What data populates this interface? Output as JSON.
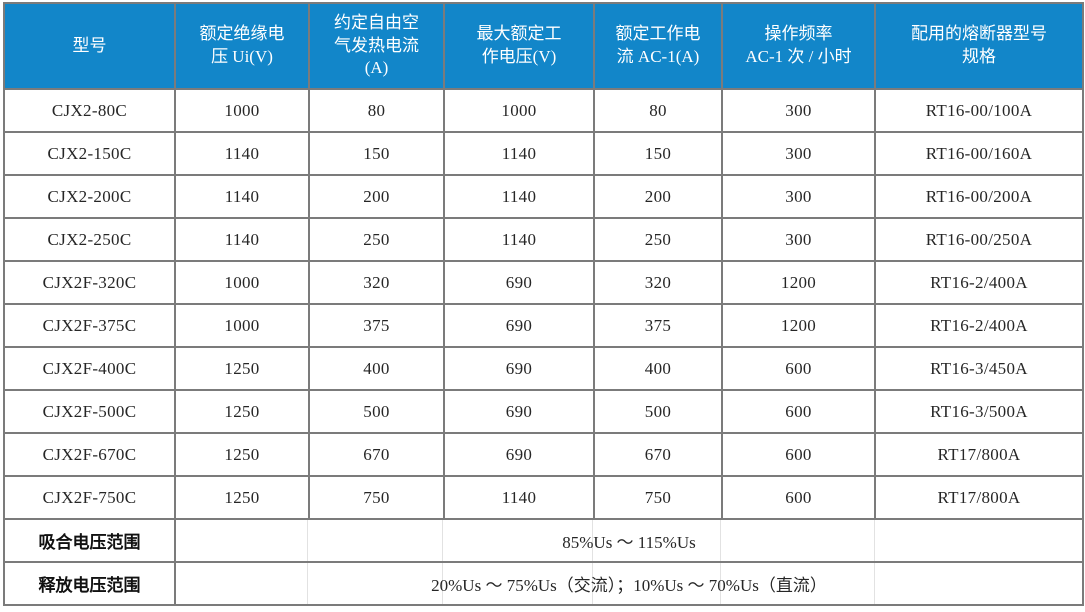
{
  "table": {
    "colors": {
      "header_bg": "#1286C9",
      "header_text": "#FFFFFF",
      "body_text": "#262626",
      "border": "#7B7B7B"
    },
    "columns": [
      "型号",
      "额定绝缘电\n压 Ui(V)",
      "约定自由空\n气发热电流\n(A)",
      "最大额定工\n作电压(V)",
      "额定工作电\n流 AC-1(A)",
      "操作频率\nAC-1 次 / 小时",
      "配用的熔断器型号\n规格"
    ],
    "rows": [
      [
        "CJX2-80C",
        "1000",
        "80",
        "1000",
        "80",
        "300",
        "RT16-00/100A"
      ],
      [
        "CJX2-150C",
        "1140",
        "150",
        "1140",
        "150",
        "300",
        "RT16-00/160A"
      ],
      [
        "CJX2-200C",
        "1140",
        "200",
        "1140",
        "200",
        "300",
        "RT16-00/200A"
      ],
      [
        "CJX2-250C",
        "1140",
        "250",
        "1140",
        "250",
        "300",
        "RT16-00/250A"
      ],
      [
        "CJX2F-320C",
        "1000",
        "320",
        "690",
        "320",
        "1200",
        "RT16-2/400A"
      ],
      [
        "CJX2F-375C",
        "1000",
        "375",
        "690",
        "375",
        "1200",
        "RT16-2/400A"
      ],
      [
        "CJX2F-400C",
        "1250",
        "400",
        "690",
        "400",
        "600",
        "RT16-3/450A"
      ],
      [
        "CJX2F-500C",
        "1250",
        "500",
        "690",
        "500",
        "600",
        "RT16-3/500A"
      ],
      [
        "CJX2F-670C",
        "1250",
        "670",
        "690",
        "670",
        "600",
        "RT17/800A"
      ],
      [
        "CJX2F-750C",
        "1250",
        "750",
        "1140",
        "750",
        "600",
        "RT17/800A"
      ]
    ],
    "footer": [
      {
        "label": "吸合电压范围",
        "value": "85%Us ～ 115%Us"
      },
      {
        "label": "释放电压范围",
        "value": "20%Us ～ 75%Us（交流）；10%Us ～ 70%Us（直流）"
      }
    ]
  }
}
